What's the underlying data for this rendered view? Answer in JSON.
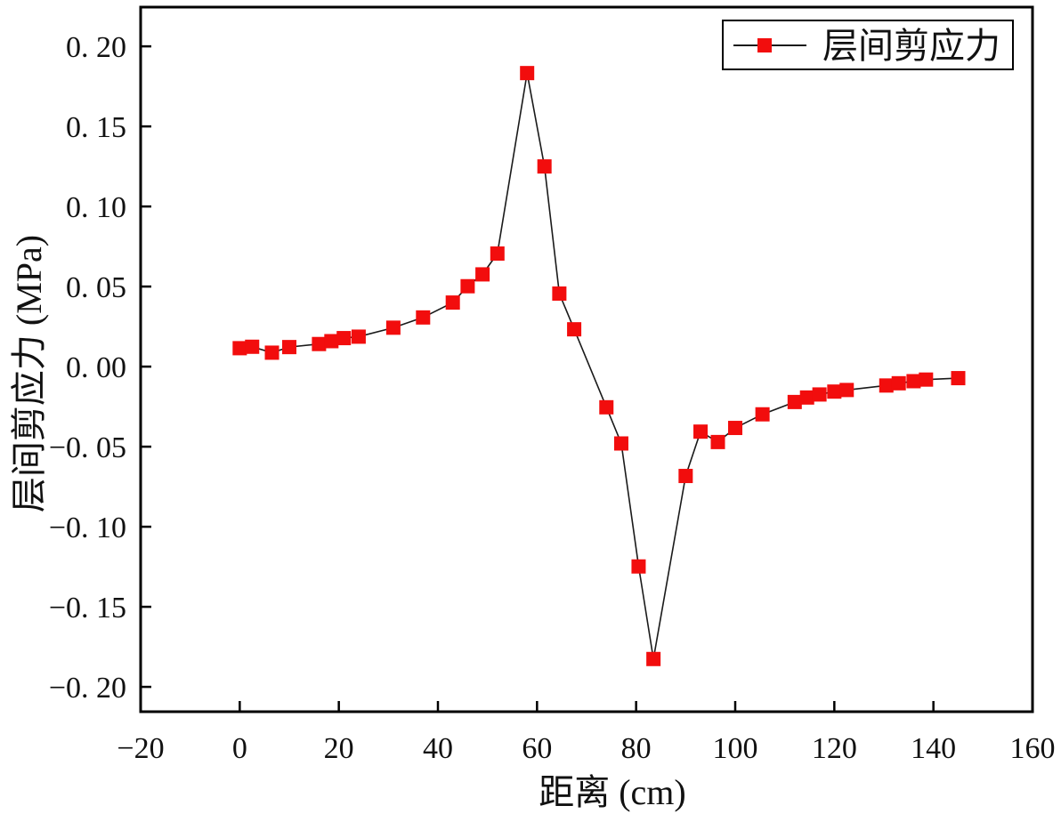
{
  "figure": {
    "background": "#ffffff",
    "frame_color": "#000000"
  },
  "chart_data": {
    "type": "line",
    "title": "",
    "xlabel": "距离 (cm)",
    "ylabel": "层间剪应力 (MPa)",
    "grid": false,
    "legend_position": "top-right",
    "x_axis": {
      "min": -20,
      "max": 160,
      "tick_values": [
        -20,
        0,
        20,
        40,
        60,
        80,
        100,
        120,
        140,
        160
      ],
      "tick_labels": [
        "−20",
        "0",
        "20",
        "40",
        "60",
        "80",
        "100",
        "120",
        "140",
        "160"
      ]
    },
    "y_axis": {
      "min": -0.2155,
      "max": 0.2245,
      "tick_values": [
        0.2,
        0.15,
        0.1,
        0.05,
        0.0,
        -0.05,
        -0.1,
        -0.15,
        -0.2
      ],
      "tick_labels": [
        "0. 20",
        "0. 15",
        "0. 10",
        "0. 05",
        "0. 00",
        "−0. 05",
        "−0. 10",
        "−0. 15",
        "−0. 20"
      ]
    },
    "series": [
      {
        "name": "层间剪应力",
        "marker": "square",
        "marker_color": "#F20D0D",
        "line_color": "#1a1a1a",
        "points": [
          [
            0,
            0.0115
          ],
          [
            2.5,
            0.0124
          ],
          [
            6.5,
            0.0087
          ],
          [
            10,
            0.0122
          ],
          [
            16,
            0.0141
          ],
          [
            18.5,
            0.0159
          ],
          [
            21,
            0.0178
          ],
          [
            24,
            0.0187
          ],
          [
            31,
            0.0243
          ],
          [
            37,
            0.0307
          ],
          [
            43,
            0.04
          ],
          [
            46,
            0.0502
          ],
          [
            49,
            0.0576
          ],
          [
            52,
            0.0706
          ],
          [
            58,
            0.1833
          ],
          [
            61.5,
            0.125
          ],
          [
            64.5,
            0.0456
          ],
          [
            67.5,
            0.0233
          ],
          [
            74,
            -0.0254
          ],
          [
            77,
            -0.048
          ],
          [
            80.5,
            -0.1248
          ],
          [
            83.5,
            -0.1826
          ],
          [
            90,
            -0.0683
          ],
          [
            93,
            -0.0406
          ],
          [
            96.5,
            -0.0471
          ],
          [
            100,
            -0.0383
          ],
          [
            105.5,
            -0.0298
          ],
          [
            112,
            -0.0221
          ],
          [
            114.5,
            -0.0193
          ],
          [
            117,
            -0.0174
          ],
          [
            120,
            -0.0156
          ],
          [
            122.5,
            -0.0146
          ],
          [
            130.5,
            -0.0118
          ],
          [
            133,
            -0.0104
          ],
          [
            136,
            -0.0091
          ],
          [
            138.5,
            -0.0081
          ],
          [
            145,
            -0.0072
          ]
        ]
      }
    ],
    "legend": {
      "label": "层间剪应力"
    }
  }
}
